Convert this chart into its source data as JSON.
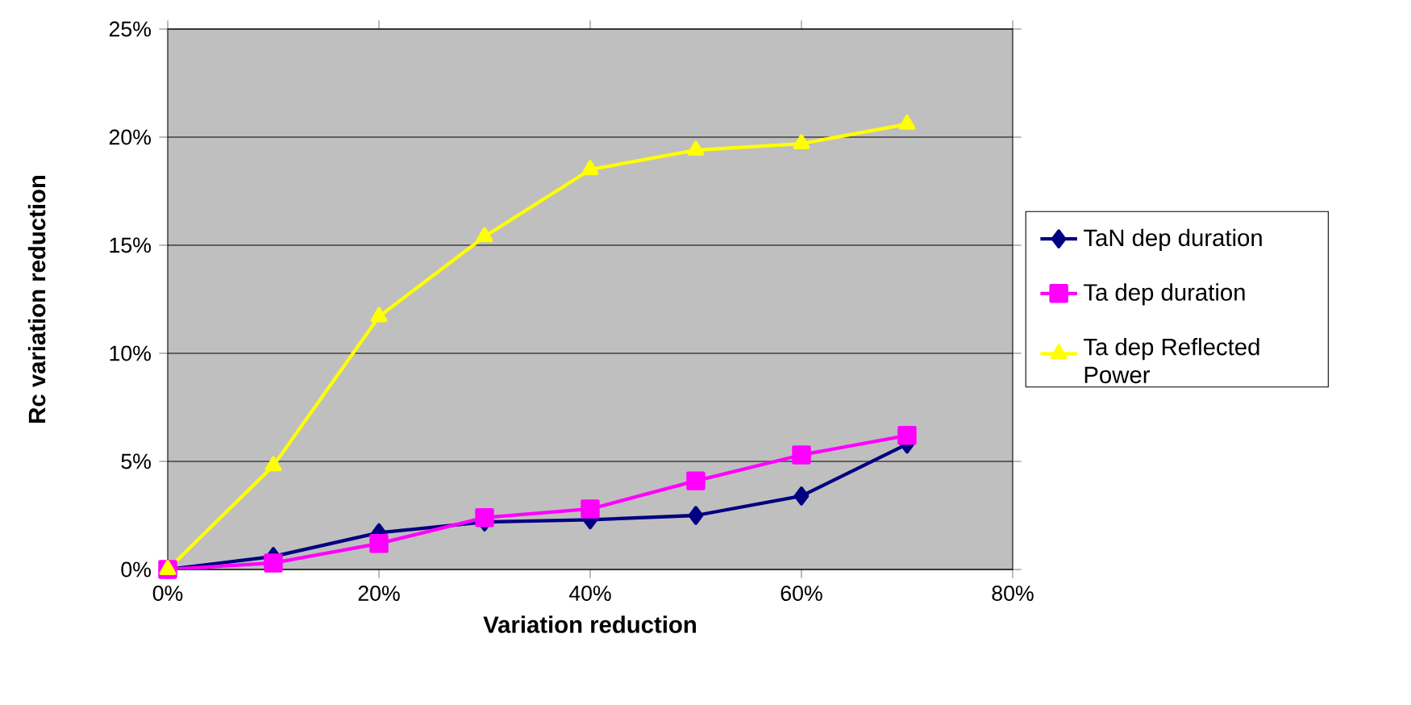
{
  "chart_data": {
    "type": "line",
    "xlabel": "Variation reduction",
    "ylabel": "Rc variation reduction",
    "x": [
      0,
      10,
      20,
      30,
      40,
      50,
      60,
      70
    ],
    "series": [
      {
        "name": "TaN dep duration",
        "color": "#000080",
        "marker": "diamond",
        "values": [
          0,
          0.6,
          1.7,
          2.2,
          2.3,
          2.5,
          3.4,
          5.8
        ]
      },
      {
        "name": "Ta dep duration",
        "color": "#ff00ff",
        "marker": "square",
        "values": [
          0,
          0.3,
          1.2,
          2.4,
          2.8,
          4.1,
          5.3,
          6.2
        ]
      },
      {
        "name": "Ta dep Reflected Power",
        "color": "#ffff00",
        "marker": "triangle",
        "values": [
          0,
          4.8,
          11.7,
          15.4,
          18.5,
          19.4,
          19.7,
          20.6
        ]
      }
    ],
    "xlim": [
      0,
      80
    ],
    "ylim": [
      0,
      25
    ],
    "xticks": [
      {
        "value": 0,
        "label": "0%"
      },
      {
        "value": 20,
        "label": "20%"
      },
      {
        "value": 40,
        "label": "40%"
      },
      {
        "value": 60,
        "label": "60%"
      },
      {
        "value": 80,
        "label": "80%"
      }
    ],
    "yticks": [
      {
        "value": 0,
        "label": "0%"
      },
      {
        "value": 5,
        "label": "5%"
      },
      {
        "value": 10,
        "label": "10%"
      },
      {
        "value": 15,
        "label": "15%"
      },
      {
        "value": 20,
        "label": "20%"
      },
      {
        "value": 25,
        "label": "25%"
      }
    ],
    "grid": "y",
    "legend": "right",
    "line_style": "solid"
  }
}
